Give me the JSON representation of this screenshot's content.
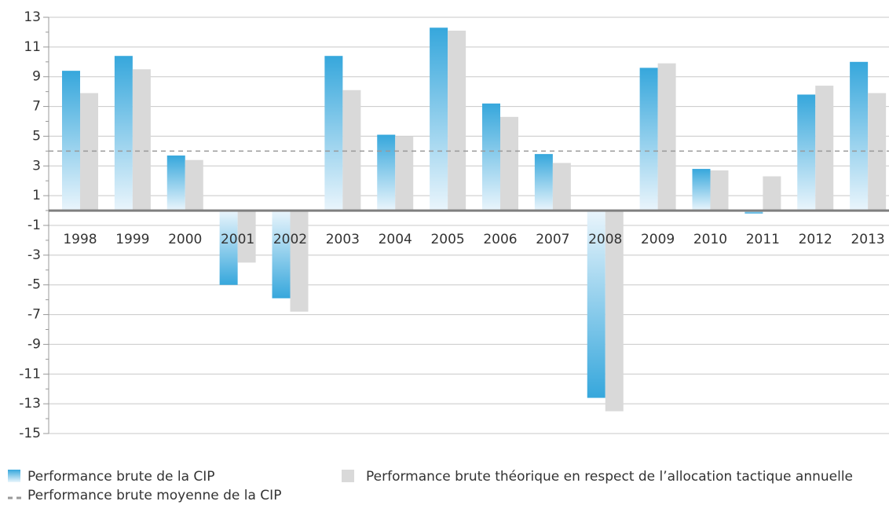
{
  "chart_data": {
    "type": "bar",
    "categories": [
      "1998",
      "1999",
      "2000",
      "2001",
      "2002",
      "2003",
      "2004",
      "2005",
      "2006",
      "2007",
      "2008",
      "2009",
      "2010",
      "2011",
      "2012",
      "2013"
    ],
    "series": [
      {
        "name": "Performance brute de la CIP",
        "color": "#36a7dc",
        "gradient": true,
        "values": [
          9.4,
          10.4,
          3.7,
          -5.0,
          -5.9,
          10.4,
          5.1,
          12.3,
          7.2,
          3.8,
          -12.6,
          9.6,
          2.8,
          -0.2,
          7.8,
          10.0
        ]
      },
      {
        "name": "Performance brute théorique en respect de l’allocation tactique annuelle",
        "color": "#d9d9d9",
        "gradient": false,
        "values": [
          7.9,
          9.5,
          3.4,
          -3.5,
          -6.8,
          8.1,
          5.0,
          12.1,
          6.3,
          3.2,
          -13.5,
          9.9,
          2.7,
          2.3,
          8.4,
          7.9
        ]
      }
    ],
    "reference_line": {
      "name": "Performance brute moyenne de la CIP",
      "value": 4,
      "color": "#999999"
    },
    "ylim": [
      -15,
      13
    ],
    "yticks": [
      13,
      11,
      9,
      7,
      5,
      3,
      1,
      -1,
      -3,
      -5,
      -7,
      -9,
      -11,
      -13,
      -15
    ],
    "yticks_minor": [
      12,
      10,
      8,
      6,
      4,
      2,
      0,
      -2,
      -4,
      -6,
      -8,
      -10,
      -12,
      -14
    ],
    "grid": true
  }
}
